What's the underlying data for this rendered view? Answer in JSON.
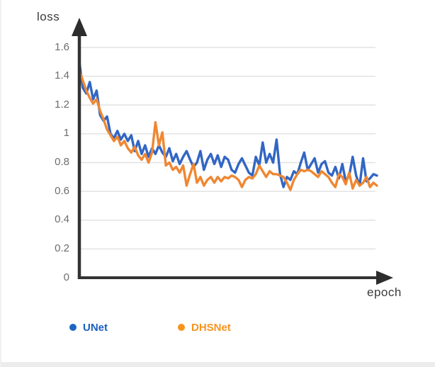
{
  "figure": {
    "y_axis_label": "loss",
    "x_axis_label": "epoch",
    "y_ticks": [
      "1.6",
      "1.4",
      "1.2",
      "1",
      "0.8",
      "0.6",
      "0.4",
      "0.2",
      "0"
    ]
  },
  "legend": {
    "items": [
      {
        "label": "UNet",
        "text_color": "#1b5fc0",
        "dot_color": "#1a66c2"
      },
      {
        "label": "DHSNet",
        "text_color": "#f7941d",
        "dot_color": "#f7941e"
      }
    ]
  },
  "colors": {
    "axis": "#333333",
    "gridline": "#e2e2e2",
    "tick_text": "#6d6d6d",
    "axis_label_text": "#3b3b3b"
  },
  "chart_data": {
    "type": "line",
    "title": "",
    "xlabel": "epoch",
    "ylabel": "loss",
    "ylim": [
      0,
      1.7
    ],
    "y_tick_values": [
      1.6,
      1.4,
      1.2,
      1.0,
      0.8,
      0.6,
      0.4,
      0.2,
      0
    ],
    "x_axis_ticks_labeled": false,
    "grid": true,
    "legend_position": "bottom",
    "series": [
      {
        "name": "UNet",
        "color": "#3166c4",
        "values": [
          1.5,
          1.32,
          1.28,
          1.36,
          1.24,
          1.3,
          1.13,
          1.09,
          1.12,
          1.0,
          0.97,
          1.02,
          0.96,
          1.0,
          0.95,
          0.99,
          0.88,
          0.95,
          0.86,
          0.92,
          0.84,
          0.9,
          0.86,
          0.92,
          0.87,
          0.84,
          0.9,
          0.81,
          0.86,
          0.79,
          0.84,
          0.88,
          0.82,
          0.77,
          0.8,
          0.88,
          0.75,
          0.82,
          0.86,
          0.79,
          0.85,
          0.77,
          0.84,
          0.82,
          0.75,
          0.73,
          0.79,
          0.83,
          0.78,
          0.73,
          0.71,
          0.84,
          0.78,
          0.94,
          0.8,
          0.86,
          0.8,
          0.96,
          0.72,
          0.63,
          0.7,
          0.68,
          0.74,
          0.72,
          0.8,
          0.87,
          0.75,
          0.79,
          0.83,
          0.73,
          0.79,
          0.81,
          0.73,
          0.71,
          0.77,
          0.69,
          0.79,
          0.67,
          0.71,
          0.84,
          0.71,
          0.64,
          0.83,
          0.67,
          0.69,
          0.72,
          0.71
        ]
      },
      {
        "name": "DHSNet",
        "color": "#ef8732",
        "values": [
          1.44,
          1.37,
          1.3,
          1.25,
          1.21,
          1.24,
          1.16,
          1.1,
          1.03,
          0.99,
          0.95,
          0.98,
          0.92,
          0.95,
          0.9,
          0.87,
          0.91,
          0.85,
          0.82,
          0.86,
          0.8,
          0.87,
          1.08,
          0.92,
          1.01,
          0.78,
          0.8,
          0.75,
          0.77,
          0.73,
          0.78,
          0.64,
          0.72,
          0.79,
          0.66,
          0.7,
          0.64,
          0.68,
          0.7,
          0.66,
          0.7,
          0.67,
          0.7,
          0.69,
          0.71,
          0.7,
          0.68,
          0.63,
          0.68,
          0.7,
          0.69,
          0.72,
          0.78,
          0.74,
          0.7,
          0.74,
          0.72,
          0.72,
          0.71,
          0.7,
          0.66,
          0.61,
          0.68,
          0.72,
          0.75,
          0.74,
          0.75,
          0.74,
          0.72,
          0.7,
          0.74,
          0.72,
          0.7,
          0.66,
          0.63,
          0.72,
          0.7,
          0.65,
          0.73,
          0.62,
          0.68,
          0.64,
          0.66,
          0.7,
          0.63,
          0.66,
          0.64
        ]
      }
    ]
  }
}
